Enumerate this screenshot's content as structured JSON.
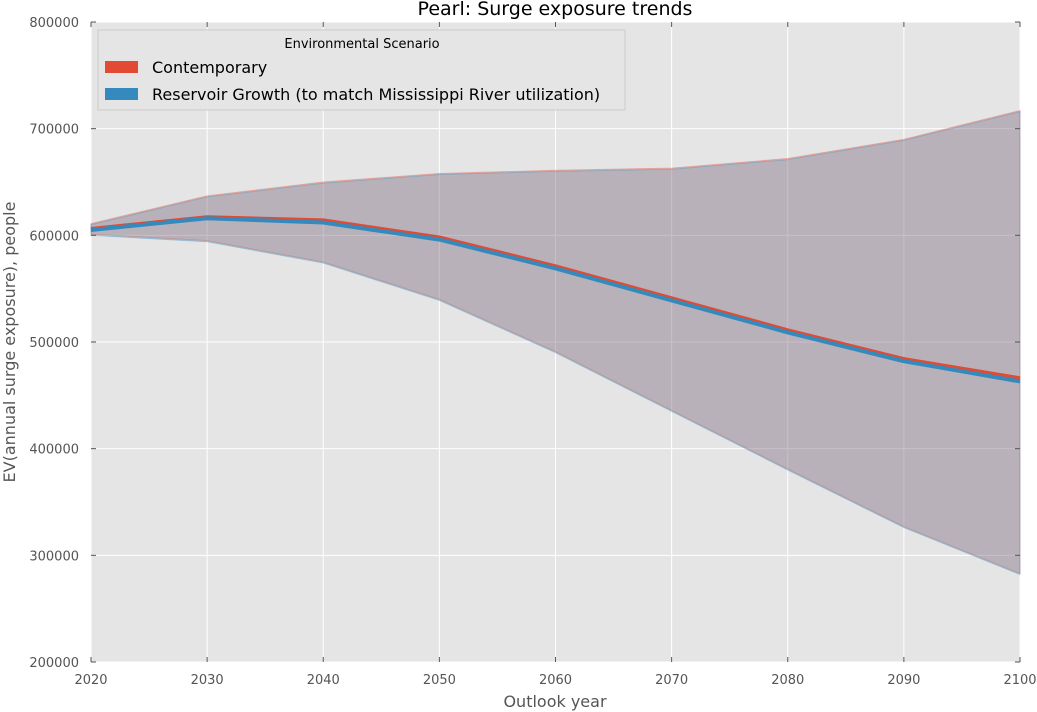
{
  "chart_data": {
    "type": "area",
    "title": "Pearl: Surge exposure trends",
    "xlabel": "Outlook year",
    "ylabel": "EV(annual surge exposure), people",
    "x": [
      2020,
      2030,
      2040,
      2050,
      2060,
      2070,
      2080,
      2090,
      2100
    ],
    "xlim": [
      2020,
      2100
    ],
    "ylim": [
      200000,
      800000
    ],
    "x_ticks": [
      "2020",
      "2030",
      "2040",
      "2050",
      "2060",
      "2070",
      "2080",
      "2090",
      "2100"
    ],
    "y_ticks": [
      "200000",
      "300000",
      "400000",
      "500000",
      "600000",
      "700000",
      "800000"
    ],
    "grid": true,
    "legend": {
      "title": "Environmental Scenario",
      "placement": "top-left"
    },
    "series": [
      {
        "name": "Contemporary",
        "color": "#E24A33",
        "values": [
          606000,
          617000,
          614000,
          598000,
          571000,
          541000,
          511000,
          484000,
          466000
        ],
        "upper": [
          611000,
          637000,
          650000,
          658000,
          661000,
          663000,
          672000,
          690000,
          717000
        ],
        "lower": [
          601000,
          595000,
          575000,
          540000,
          491000,
          436000,
          381000,
          327000,
          283000
        ]
      },
      {
        "name": "Reservoir Growth (to match Mississippi River utilization)",
        "color": "#348ABD",
        "values": [
          605000,
          616000,
          612000,
          596000,
          569000,
          539000,
          509000,
          482000,
          463000
        ],
        "upper": [
          610000,
          636000,
          649000,
          657000,
          660000,
          662000,
          671000,
          689000,
          716000
        ],
        "lower": [
          600000,
          594000,
          574000,
          539000,
          490000,
          435000,
          380000,
          326000,
          282000
        ]
      }
    ]
  }
}
